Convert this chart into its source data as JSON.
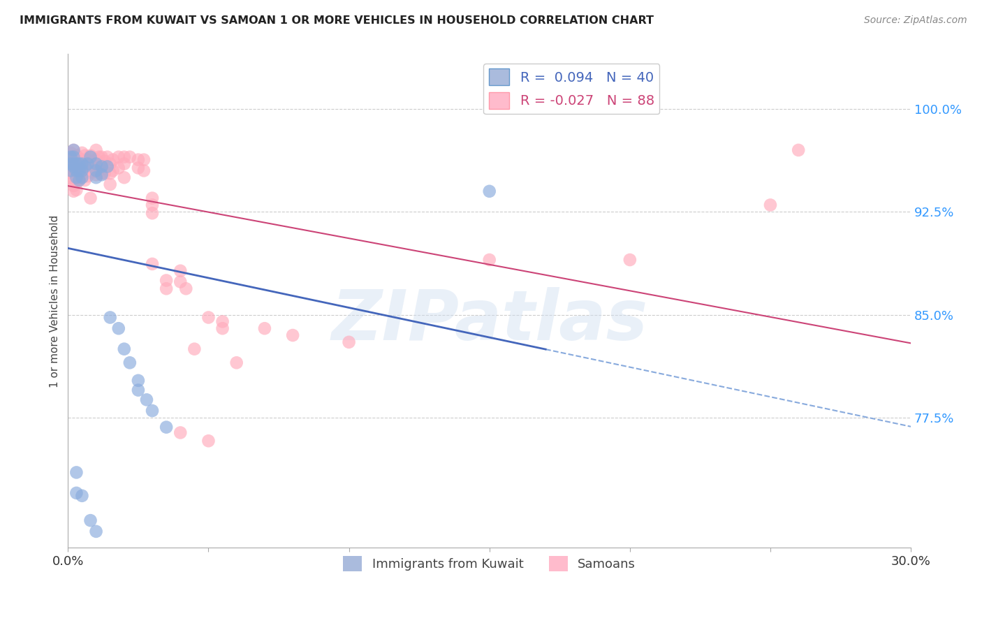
{
  "title": "IMMIGRANTS FROM KUWAIT VS SAMOAN 1 OR MORE VEHICLES IN HOUSEHOLD CORRELATION CHART",
  "source": "Source: ZipAtlas.com",
  "ylabel": "1 or more Vehicles in Household",
  "xlim": [
    0.0,
    0.3
  ],
  "ylim": [
    0.68,
    1.04
  ],
  "background_color": "#ffffff",
  "grid_color": "#cccccc",
  "kuwait_color": "#88aadd",
  "samoan_color": "#ffaabb",
  "kuwait_line_color": "#4466bb",
  "samoan_line_color": "#cc4477",
  "dashed_line_color": "#88aadd",
  "ytick_vals": [
    0.775,
    0.85,
    0.925,
    1.0
  ],
  "ytick_labels": [
    "77.5%",
    "85.0%",
    "92.5%",
    "100.0%"
  ],
  "xtick_vals": [
    0.0,
    0.05,
    0.1,
    0.15,
    0.2,
    0.25,
    0.3
  ],
  "xtick_labels": [
    "0.0%",
    "",
    "",
    "",
    "",
    "",
    "30.0%"
  ],
  "legend_r_kuwait": "R =  0.094",
  "legend_n_kuwait": "N = 40",
  "legend_r_samoan": "R = -0.027",
  "legend_n_samoan": "N = 88",
  "legend_color_kuwait": "#4466bb",
  "legend_color_samoan": "#cc4477",
  "watermark": "ZIPatlas",
  "kuwait_scatter": [
    [
      0.001,
      0.955
    ],
    [
      0.001,
      0.96
    ],
    [
      0.001,
      0.965
    ],
    [
      0.002,
      0.96
    ],
    [
      0.002,
      0.965
    ],
    [
      0.002,
      0.97
    ],
    [
      0.002,
      0.958
    ],
    [
      0.003,
      0.96
    ],
    [
      0.003,
      0.955
    ],
    [
      0.003,
      0.95
    ],
    [
      0.004,
      0.96
    ],
    [
      0.004,
      0.955
    ],
    [
      0.004,
      0.948
    ],
    [
      0.005,
      0.96
    ],
    [
      0.005,
      0.955
    ],
    [
      0.005,
      0.95
    ],
    [
      0.006,
      0.958
    ],
    [
      0.007,
      0.96
    ],
    [
      0.008,
      0.965
    ],
    [
      0.01,
      0.96
    ],
    [
      0.01,
      0.955
    ],
    [
      0.01,
      0.95
    ],
    [
      0.012,
      0.958
    ],
    [
      0.012,
      0.952
    ],
    [
      0.014,
      0.958
    ],
    [
      0.015,
      0.848
    ],
    [
      0.018,
      0.84
    ],
    [
      0.02,
      0.825
    ],
    [
      0.022,
      0.815
    ],
    [
      0.025,
      0.802
    ],
    [
      0.025,
      0.795
    ],
    [
      0.028,
      0.788
    ],
    [
      0.03,
      0.78
    ],
    [
      0.035,
      0.768
    ],
    [
      0.005,
      0.718
    ],
    [
      0.008,
      0.7
    ],
    [
      0.01,
      0.692
    ],
    [
      0.003,
      0.72
    ],
    [
      0.003,
      0.735
    ],
    [
      0.15,
      0.94
    ]
  ],
  "samoan_scatter": [
    [
      0.001,
      0.968
    ],
    [
      0.001,
      0.963
    ],
    [
      0.001,
      0.958
    ],
    [
      0.001,
      0.954
    ],
    [
      0.001,
      0.95
    ],
    [
      0.002,
      0.97
    ],
    [
      0.002,
      0.965
    ],
    [
      0.002,
      0.96
    ],
    [
      0.002,
      0.956
    ],
    [
      0.002,
      0.952
    ],
    [
      0.002,
      0.948
    ],
    [
      0.002,
      0.944
    ],
    [
      0.002,
      0.94
    ],
    [
      0.003,
      0.966
    ],
    [
      0.003,
      0.961
    ],
    [
      0.003,
      0.956
    ],
    [
      0.003,
      0.951
    ],
    [
      0.003,
      0.946
    ],
    [
      0.003,
      0.941
    ],
    [
      0.004,
      0.964
    ],
    [
      0.004,
      0.959
    ],
    [
      0.004,
      0.954
    ],
    [
      0.004,
      0.949
    ],
    [
      0.005,
      0.968
    ],
    [
      0.005,
      0.963
    ],
    [
      0.005,
      0.957
    ],
    [
      0.006,
      0.966
    ],
    [
      0.006,
      0.96
    ],
    [
      0.006,
      0.954
    ],
    [
      0.006,
      0.948
    ],
    [
      0.007,
      0.963
    ],
    [
      0.007,
      0.957
    ],
    [
      0.007,
      0.951
    ],
    [
      0.008,
      0.966
    ],
    [
      0.008,
      0.958
    ],
    [
      0.008,
      0.935
    ],
    [
      0.009,
      0.962
    ],
    [
      0.009,
      0.954
    ],
    [
      0.01,
      0.97
    ],
    [
      0.01,
      0.963
    ],
    [
      0.01,
      0.958
    ],
    [
      0.01,
      0.952
    ],
    [
      0.011,
      0.965
    ],
    [
      0.011,
      0.955
    ],
    [
      0.012,
      0.965
    ],
    [
      0.012,
      0.959
    ],
    [
      0.012,
      0.953
    ],
    [
      0.013,
      0.962
    ],
    [
      0.013,
      0.953
    ],
    [
      0.014,
      0.965
    ],
    [
      0.015,
      0.96
    ],
    [
      0.015,
      0.953
    ],
    [
      0.015,
      0.945
    ],
    [
      0.016,
      0.963
    ],
    [
      0.016,
      0.955
    ],
    [
      0.018,
      0.965
    ],
    [
      0.018,
      0.957
    ],
    [
      0.02,
      0.965
    ],
    [
      0.02,
      0.96
    ],
    [
      0.02,
      0.95
    ],
    [
      0.022,
      0.965
    ],
    [
      0.025,
      0.963
    ],
    [
      0.025,
      0.957
    ],
    [
      0.027,
      0.963
    ],
    [
      0.027,
      0.955
    ],
    [
      0.03,
      0.935
    ],
    [
      0.03,
      0.93
    ],
    [
      0.03,
      0.924
    ],
    [
      0.03,
      0.887
    ],
    [
      0.035,
      0.875
    ],
    [
      0.035,
      0.869
    ],
    [
      0.04,
      0.882
    ],
    [
      0.04,
      0.874
    ],
    [
      0.042,
      0.869
    ],
    [
      0.045,
      0.825
    ],
    [
      0.05,
      0.848
    ],
    [
      0.055,
      0.845
    ],
    [
      0.055,
      0.84
    ],
    [
      0.06,
      0.815
    ],
    [
      0.07,
      0.84
    ],
    [
      0.08,
      0.835
    ],
    [
      0.1,
      0.83
    ],
    [
      0.15,
      0.89
    ],
    [
      0.2,
      0.89
    ],
    [
      0.25,
      0.93
    ],
    [
      0.26,
      0.97
    ],
    [
      0.04,
      0.764
    ],
    [
      0.05,
      0.758
    ]
  ]
}
